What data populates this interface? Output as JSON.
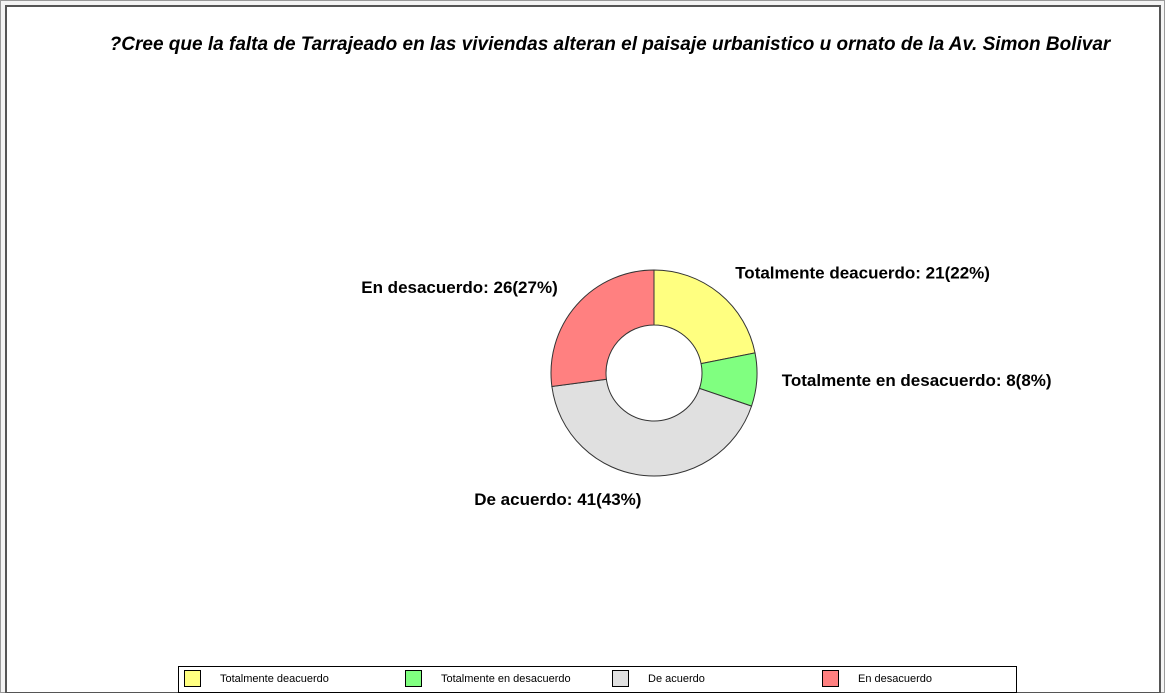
{
  "chart_data": {
    "type": "donut",
    "title": "?Cree que la falta de Tarrajeado en las viviendas alteran el paisaje urbanistico u ornato de la Av. Simon Bolivar",
    "categories": [
      "Totalmente deacuerdo",
      "Totalmente en desacuerdo",
      "De acuerdo",
      "En desacuerdo"
    ],
    "values": [
      21,
      8,
      41,
      26
    ],
    "value_labels": [
      "Totalmente deacuerdo: 21(22%)",
      "Totalmente en desacuerdo: 8(8%)",
      "De acuerdo: 41(43%)",
      "En desacuerdo: 26(27%)"
    ],
    "colors": [
      "#ffff80",
      "#80ff80",
      "#e0e0e0",
      "#ff8080"
    ],
    "legend": "bottom"
  }
}
